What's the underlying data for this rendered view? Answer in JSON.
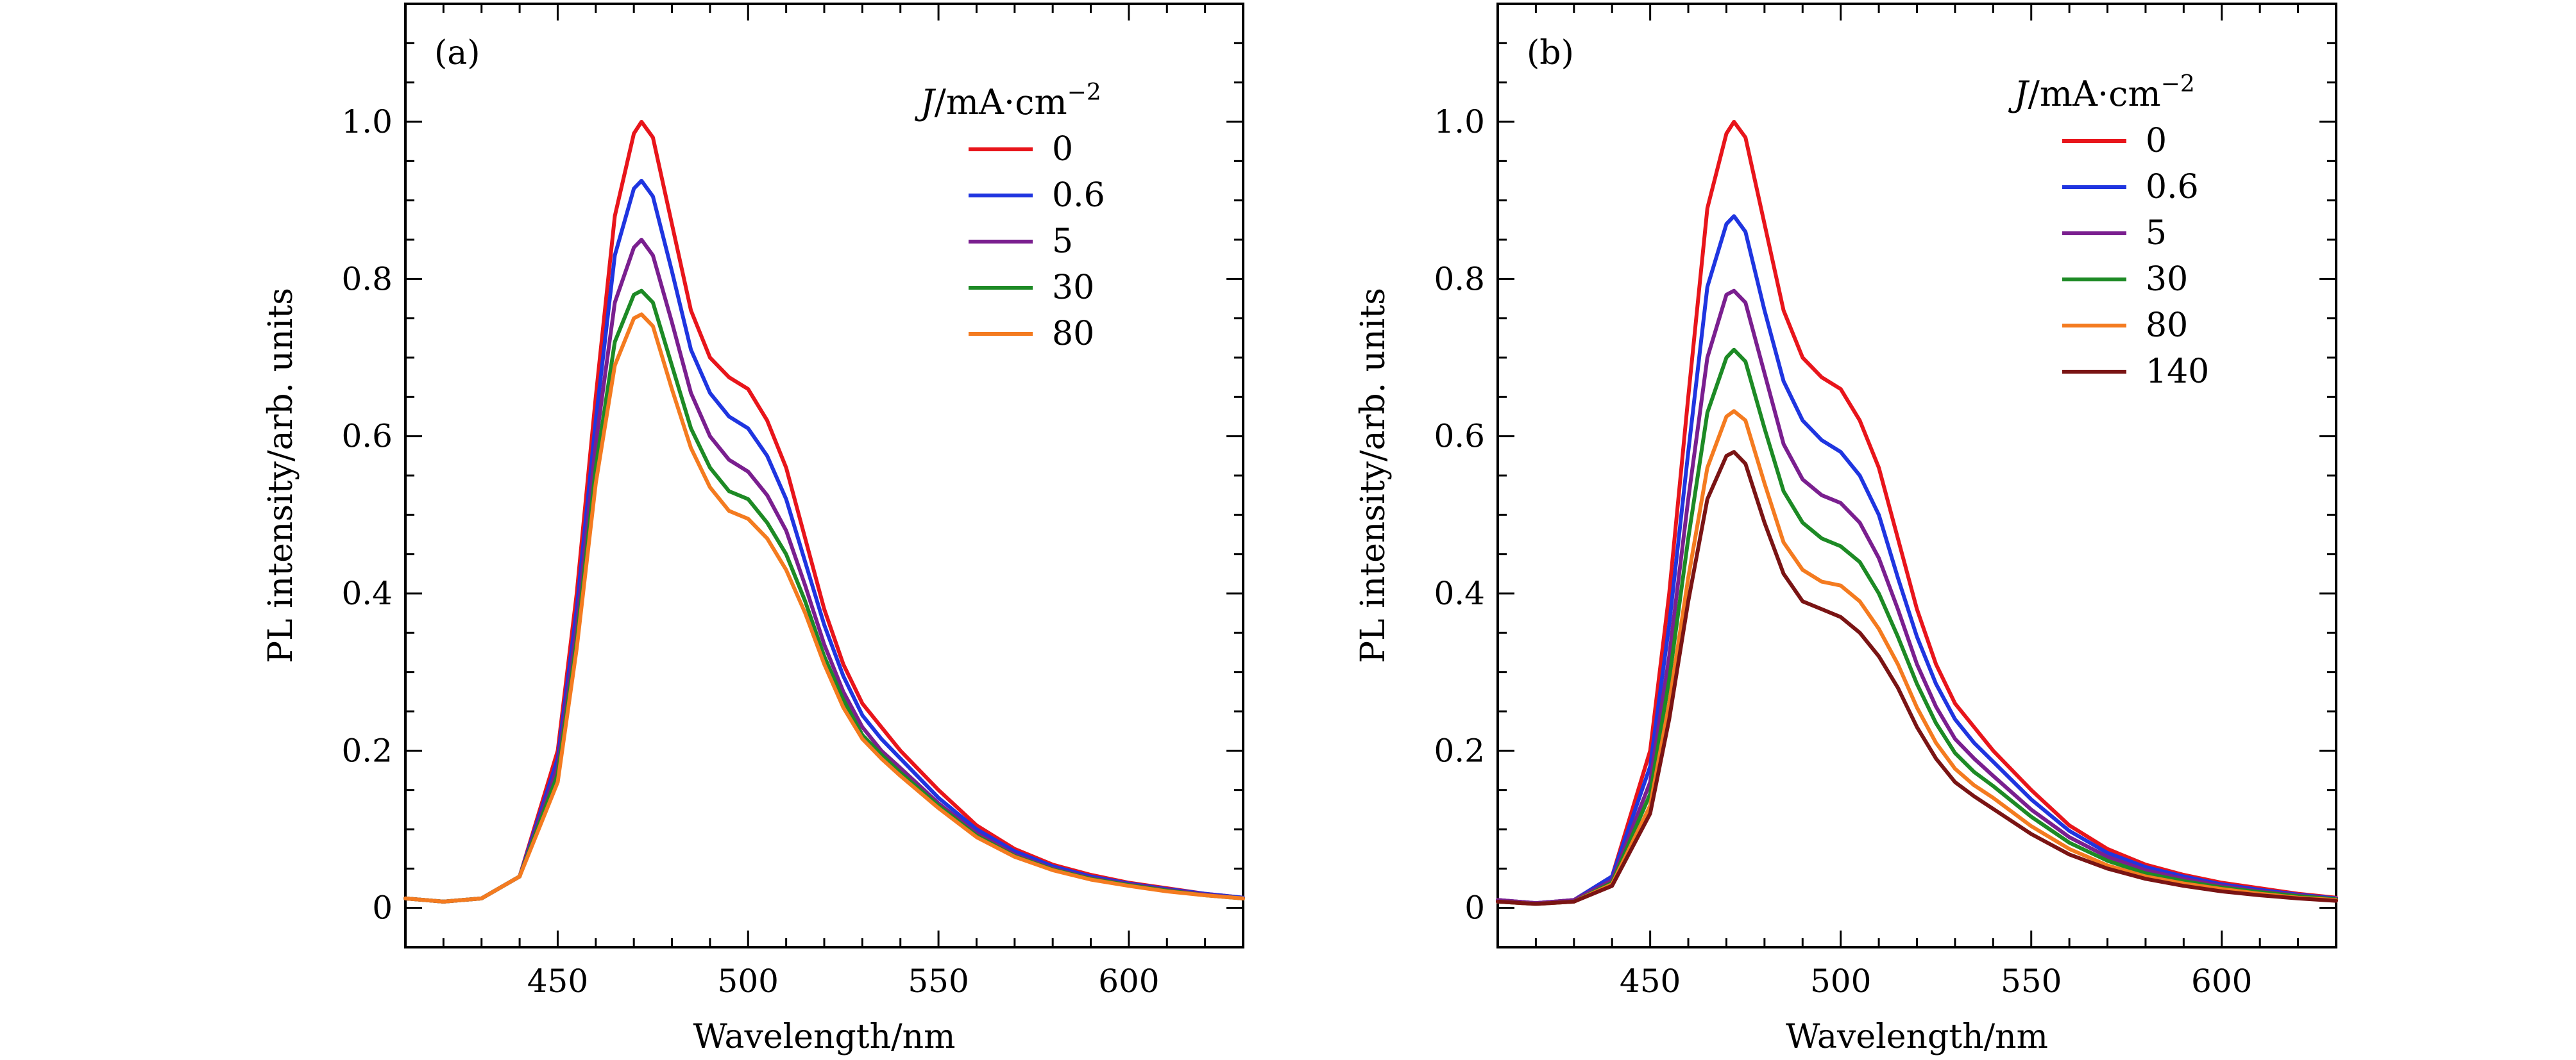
{
  "chart_data": [
    {
      "type": "line",
      "panel_label": "(a)",
      "xlabel": "Wavelength/nm",
      "ylabel": "PL intensity/arb. units",
      "xlim": [
        410,
        630
      ],
      "ylim": [
        -0.05,
        1.15
      ],
      "xticks": [
        450,
        500,
        550,
        600
      ],
      "xtick_labels": [
        "450",
        "500",
        "550",
        "600"
      ],
      "yticks": [
        0,
        0.2,
        0.4,
        0.6,
        0.8,
        1.0
      ],
      "ytick_labels": [
        "0",
        "0.2",
        "0.4",
        "0.6",
        "0.8",
        "1.0"
      ],
      "grid": false,
      "legend_placement": "top-right",
      "legend_title": {
        "italic": "J",
        "text": "/mA·cm",
        "sup": "−2"
      },
      "x": [
        410,
        420,
        430,
        440,
        450,
        455,
        460,
        465,
        470,
        472,
        475,
        480,
        485,
        490,
        495,
        500,
        505,
        510,
        515,
        520,
        525,
        530,
        535,
        540,
        550,
        560,
        570,
        580,
        590,
        600,
        610,
        620,
        630
      ],
      "series": [
        {
          "name": "0",
          "color": "#e8151b",
          "values": [
            0.012,
            0.008,
            0.012,
            0.04,
            0.2,
            0.4,
            0.65,
            0.88,
            0.985,
            1.0,
            0.98,
            0.87,
            0.76,
            0.7,
            0.675,
            0.66,
            0.62,
            0.56,
            0.47,
            0.38,
            0.31,
            0.26,
            0.23,
            0.2,
            0.15,
            0.105,
            0.075,
            0.055,
            0.042,
            0.032,
            0.025,
            0.018,
            0.013
          ]
        },
        {
          "name": "0.6",
          "color": "#1f35e0",
          "values": [
            0.012,
            0.008,
            0.012,
            0.04,
            0.19,
            0.38,
            0.62,
            0.83,
            0.915,
            0.925,
            0.905,
            0.81,
            0.71,
            0.655,
            0.625,
            0.61,
            0.575,
            0.52,
            0.44,
            0.36,
            0.295,
            0.245,
            0.215,
            0.19,
            0.14,
            0.1,
            0.072,
            0.053,
            0.04,
            0.031,
            0.024,
            0.018,
            0.013
          ]
        },
        {
          "name": "5",
          "color": "#7a1f8f",
          "values": [
            0.012,
            0.008,
            0.012,
            0.04,
            0.18,
            0.36,
            0.59,
            0.77,
            0.84,
            0.85,
            0.83,
            0.745,
            0.655,
            0.6,
            0.57,
            0.555,
            0.525,
            0.48,
            0.41,
            0.335,
            0.275,
            0.23,
            0.2,
            0.178,
            0.133,
            0.095,
            0.068,
            0.05,
            0.038,
            0.03,
            0.023,
            0.017,
            0.012
          ]
        },
        {
          "name": "30",
          "color": "#1d8a25",
          "values": [
            0.012,
            0.008,
            0.012,
            0.04,
            0.17,
            0.34,
            0.56,
            0.72,
            0.78,
            0.785,
            0.77,
            0.69,
            0.61,
            0.56,
            0.53,
            0.52,
            0.49,
            0.45,
            0.39,
            0.32,
            0.265,
            0.22,
            0.195,
            0.172,
            0.13,
            0.092,
            0.066,
            0.049,
            0.037,
            0.029,
            0.022,
            0.016,
            0.012
          ]
        },
        {
          "name": "80",
          "color": "#f47b20",
          "values": [
            0.012,
            0.008,
            0.012,
            0.04,
            0.16,
            0.33,
            0.54,
            0.69,
            0.75,
            0.755,
            0.74,
            0.66,
            0.585,
            0.535,
            0.505,
            0.495,
            0.47,
            0.43,
            0.375,
            0.31,
            0.255,
            0.215,
            0.19,
            0.168,
            0.127,
            0.09,
            0.065,
            0.048,
            0.036,
            0.028,
            0.021,
            0.016,
            0.012
          ]
        }
      ]
    },
    {
      "type": "line",
      "panel_label": "(b)",
      "xlabel": "Wavelength/nm",
      "ylabel": "PL intensity/arb. units",
      "xlim": [
        410,
        630
      ],
      "ylim": [
        -0.05,
        1.15
      ],
      "xticks": [
        450,
        500,
        550,
        600
      ],
      "xtick_labels": [
        "450",
        "500",
        "550",
        "600"
      ],
      "yticks": [
        0,
        0.2,
        0.4,
        0.6,
        0.8,
        1.0
      ],
      "ytick_labels": [
        "0",
        "0.2",
        "0.4",
        "0.6",
        "0.8",
        "1.0"
      ],
      "grid": false,
      "legend_placement": "top-right",
      "legend_title": {
        "italic": "J",
        "text": "/mA·cm",
        "sup": "−2"
      },
      "x": [
        410,
        420,
        430,
        440,
        450,
        455,
        460,
        465,
        470,
        472,
        475,
        480,
        485,
        490,
        495,
        500,
        505,
        510,
        515,
        520,
        525,
        530,
        535,
        540,
        550,
        560,
        570,
        580,
        590,
        600,
        610,
        620,
        630
      ],
      "series": [
        {
          "name": "0",
          "color": "#e8151b",
          "values": [
            0.01,
            0.006,
            0.01,
            0.04,
            0.2,
            0.4,
            0.65,
            0.89,
            0.985,
            1.0,
            0.98,
            0.87,
            0.76,
            0.7,
            0.675,
            0.66,
            0.62,
            0.56,
            0.47,
            0.38,
            0.31,
            0.26,
            0.23,
            0.2,
            0.15,
            0.105,
            0.075,
            0.055,
            0.042,
            0.032,
            0.025,
            0.018,
            0.013
          ]
        },
        {
          "name": "0.6",
          "color": "#1f35e0",
          "values": [
            0.01,
            0.006,
            0.01,
            0.04,
            0.18,
            0.36,
            0.58,
            0.79,
            0.87,
            0.88,
            0.86,
            0.76,
            0.67,
            0.62,
            0.595,
            0.58,
            0.55,
            0.5,
            0.42,
            0.345,
            0.285,
            0.24,
            0.21,
            0.186,
            0.138,
            0.098,
            0.07,
            0.052,
            0.04,
            0.03,
            0.023,
            0.017,
            0.012
          ]
        },
        {
          "name": "5",
          "color": "#7a1f8f",
          "values": [
            0.01,
            0.006,
            0.01,
            0.035,
            0.16,
            0.32,
            0.52,
            0.7,
            0.78,
            0.785,
            0.77,
            0.68,
            0.59,
            0.545,
            0.525,
            0.515,
            0.49,
            0.445,
            0.38,
            0.31,
            0.256,
            0.215,
            0.19,
            0.168,
            0.125,
            0.09,
            0.065,
            0.048,
            0.037,
            0.028,
            0.021,
            0.016,
            0.011
          ]
        },
        {
          "name": "30",
          "color": "#1d8a25",
          "values": [
            0.008,
            0.005,
            0.008,
            0.032,
            0.145,
            0.29,
            0.47,
            0.63,
            0.7,
            0.71,
            0.695,
            0.61,
            0.53,
            0.49,
            0.47,
            0.46,
            0.44,
            0.4,
            0.345,
            0.285,
            0.235,
            0.197,
            0.173,
            0.155,
            0.116,
            0.083,
            0.06,
            0.044,
            0.034,
            0.026,
            0.02,
            0.015,
            0.011
          ]
        },
        {
          "name": "80",
          "color": "#f47b20",
          "values": [
            0.008,
            0.005,
            0.008,
            0.03,
            0.13,
            0.26,
            0.42,
            0.56,
            0.625,
            0.632,
            0.62,
            0.54,
            0.465,
            0.43,
            0.415,
            0.41,
            0.39,
            0.355,
            0.31,
            0.255,
            0.21,
            0.177,
            0.156,
            0.14,
            0.104,
            0.075,
            0.054,
            0.04,
            0.031,
            0.024,
            0.018,
            0.013,
            0.01
          ]
        },
        {
          "name": "140",
          "color": "#7a1414",
          "values": [
            0.008,
            0.005,
            0.008,
            0.028,
            0.12,
            0.24,
            0.39,
            0.52,
            0.575,
            0.58,
            0.565,
            0.49,
            0.425,
            0.39,
            0.38,
            0.37,
            0.35,
            0.32,
            0.28,
            0.23,
            0.19,
            0.16,
            0.142,
            0.126,
            0.094,
            0.068,
            0.05,
            0.037,
            0.028,
            0.021,
            0.016,
            0.012,
            0.009
          ]
        }
      ]
    }
  ]
}
